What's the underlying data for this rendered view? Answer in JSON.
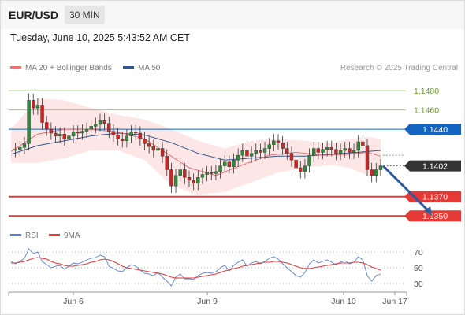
{
  "header": {
    "symbol": "EUR/USD",
    "timeframe": "30 MIN",
    "datetime": "Tuesday, June 10, 2025 5:43:52 AM CET"
  },
  "colors": {
    "ma20": "#e57373",
    "ma50": "#34578f",
    "band_fill": "#fde3e3",
    "resistance": "#9ccc65",
    "pivot": "#1565c0",
    "support": "#e53935",
    "candle_up": "#2e8b3a",
    "candle_down": "#c62828",
    "arrow": "#2c5b9e",
    "rsi": "#5b7fd6",
    "rsi_ma": "#e53935"
  },
  "chart_data": [
    {
      "type": "candlestick",
      "title": "EUR/USD",
      "legend": [
        {
          "name": "MA 20 + Bollinger Bands",
          "color": "#e57373"
        },
        {
          "name": "MA 50",
          "color": "#34578f"
        }
      ],
      "legend_placement": "top-left",
      "source": "Research © 2025 Trading Central",
      "ylim": [
        1.1342,
        1.1494
      ],
      "levels": [
        {
          "label": "1.1480",
          "value": 1.148,
          "role": "resistance"
        },
        {
          "label": "1.1460",
          "value": 1.146,
          "role": "resistance"
        },
        {
          "label": "1.1440",
          "value": 1.144,
          "role": "pivot"
        },
        {
          "label": "1.1402",
          "value": 1.1402,
          "role": "last"
        },
        {
          "label": "1.1370",
          "value": 1.137,
          "role": "support"
        },
        {
          "label": "1.1350",
          "value": 1.135,
          "role": "support"
        }
      ],
      "x_ticks": [
        "Jun 6",
        "Jun 9",
        "Jun 10",
        "Jun 17"
      ],
      "price_path": [
        [
          0,
          1.1418
        ],
        [
          1,
          1.1419
        ],
        [
          2,
          1.1421
        ],
        [
          3,
          1.1425
        ],
        [
          4,
          1.147
        ],
        [
          5,
          1.1462
        ],
        [
          6,
          1.1465
        ],
        [
          7,
          1.1447
        ],
        [
          8,
          1.144
        ],
        [
          9,
          1.1436
        ],
        [
          10,
          1.1433
        ],
        [
          11,
          1.1435
        ],
        [
          12,
          1.143
        ],
        [
          13,
          1.1433
        ],
        [
          14,
          1.1437
        ],
        [
          15,
          1.1436
        ],
        [
          16,
          1.1438
        ],
        [
          17,
          1.144
        ],
        [
          18,
          1.1443
        ],
        [
          19,
          1.1445
        ],
        [
          20,
          1.1449
        ],
        [
          21,
          1.1446
        ],
        [
          22,
          1.1438
        ],
        [
          23,
          1.1434
        ],
        [
          24,
          1.143
        ],
        [
          25,
          1.1428
        ],
        [
          26,
          1.1433
        ],
        [
          27,
          1.1437
        ],
        [
          28,
          1.1436
        ],
        [
          29,
          1.143
        ],
        [
          30,
          1.1425
        ],
        [
          31,
          1.1422
        ],
        [
          32,
          1.1418
        ],
        [
          33,
          1.142
        ],
        [
          34,
          1.1412
        ],
        [
          35,
          1.1398
        ],
        [
          36,
          1.1381
        ],
        [
          37,
          1.1392
        ],
        [
          38,
          1.1398
        ],
        [
          39,
          1.139
        ],
        [
          40,
          1.1387
        ],
        [
          41,
          1.1384
        ],
        [
          42,
          1.139
        ],
        [
          43,
          1.1393
        ],
        [
          44,
          1.1395
        ],
        [
          45,
          1.1394
        ],
        [
          46,
          1.1396
        ],
        [
          47,
          1.1402
        ],
        [
          48,
          1.1406
        ],
        [
          49,
          1.1401
        ],
        [
          50,
          1.1408
        ],
        [
          51,
          1.1413
        ],
        [
          52,
          1.1418
        ],
        [
          53,
          1.1412
        ],
        [
          54,
          1.1415
        ],
        [
          55,
          1.1418
        ],
        [
          56,
          1.1416
        ],
        [
          57,
          1.142
        ],
        [
          58,
          1.1424
        ],
        [
          59,
          1.1428
        ],
        [
          60,
          1.1426
        ],
        [
          61,
          1.142
        ],
        [
          62,
          1.1415
        ],
        [
          63,
          1.1408
        ],
        [
          64,
          1.14
        ],
        [
          65,
          1.1396
        ],
        [
          66,
          1.1402
        ],
        [
          67,
          1.1413
        ],
        [
          68,
          1.142
        ],
        [
          69,
          1.1416
        ],
        [
          70,
          1.1419
        ],
        [
          71,
          1.1421
        ],
        [
          72,
          1.1419
        ],
        [
          73,
          1.1415
        ],
        [
          74,
          1.1418
        ],
        [
          75,
          1.142
        ],
        [
          76,
          1.1416
        ],
        [
          77,
          1.1418
        ],
        [
          78,
          1.1427
        ],
        [
          79,
          1.1423
        ],
        [
          80,
          1.1398
        ],
        [
          81,
          1.1392
        ],
        [
          82,
          1.1398
        ],
        [
          83,
          1.1402
        ]
      ],
      "ma20": [
        [
          0,
          1.1417
        ],
        [
          6,
          1.1435
        ],
        [
          12,
          1.144
        ],
        [
          18,
          1.144
        ],
        [
          24,
          1.1437
        ],
        [
          30,
          1.143
        ],
        [
          36,
          1.1412
        ],
        [
          40,
          1.14
        ],
        [
          46,
          1.1392
        ],
        [
          52,
          1.1403
        ],
        [
          58,
          1.1413
        ],
        [
          64,
          1.1416
        ],
        [
          70,
          1.1413
        ],
        [
          76,
          1.1414
        ],
        [
          80,
          1.1416
        ],
        [
          83,
          1.1412
        ]
      ],
      "ma50": [
        [
          0,
          1.1414
        ],
        [
          6,
          1.1423
        ],
        [
          12,
          1.1428
        ],
        [
          18,
          1.1433
        ],
        [
          24,
          1.1436
        ],
        [
          30,
          1.1434
        ],
        [
          36,
          1.1426
        ],
        [
          42,
          1.1415
        ],
        [
          48,
          1.1408
        ],
        [
          54,
          1.141
        ],
        [
          60,
          1.1412
        ],
        [
          66,
          1.1412
        ],
        [
          72,
          1.1414
        ],
        [
          78,
          1.1416
        ],
        [
          83,
          1.1418
        ]
      ],
      "bb_upper": [
        [
          0,
          1.144
        ],
        [
          6,
          1.1472
        ],
        [
          12,
          1.147
        ],
        [
          18,
          1.1462
        ],
        [
          24,
          1.1455
        ],
        [
          30,
          1.145
        ],
        [
          36,
          1.144
        ],
        [
          42,
          1.1428
        ],
        [
          48,
          1.142
        ],
        [
          54,
          1.1428
        ],
        [
          60,
          1.143
        ],
        [
          66,
          1.1428
        ],
        [
          72,
          1.1425
        ],
        [
          76,
          1.143
        ],
        [
          80,
          1.1432
        ],
        [
          83,
          1.143
        ]
      ],
      "bb_lower": [
        [
          0,
          1.1405
        ],
        [
          6,
          1.1405
        ],
        [
          12,
          1.141
        ],
        [
          18,
          1.1418
        ],
        [
          24,
          1.1418
        ],
        [
          30,
          1.1408
        ],
        [
          36,
          1.1382
        ],
        [
          42,
          1.1372
        ],
        [
          48,
          1.1375
        ],
        [
          54,
          1.1385
        ],
        [
          60,
          1.1395
        ],
        [
          66,
          1.14
        ],
        [
          72,
          1.1403
        ],
        [
          76,
          1.14
        ],
        [
          80,
          1.1392
        ],
        [
          83,
          1.1392
        ]
      ],
      "forecast_arrow": {
        "from": [
          83,
          1.1402
        ],
        "to": [
          94,
          1.135
        ]
      }
    },
    {
      "type": "line",
      "title": "RSI",
      "legend": [
        {
          "name": "RSI",
          "color": "#5b7fd6"
        },
        {
          "name": "9MA",
          "color": "#e53935"
        }
      ],
      "ylim": [
        22,
        82
      ],
      "y_ticks": [
        {
          "label": "70",
          "value": 70
        },
        {
          "label": "50",
          "value": 50
        },
        {
          "label": "30",
          "value": 30
        }
      ],
      "rsi": [
        58,
        55,
        58,
        62,
        74,
        68,
        70,
        58,
        54,
        50,
        52,
        53,
        48,
        52,
        56,
        55,
        57,
        60,
        62,
        63,
        66,
        64,
        52,
        49,
        46,
        45,
        50,
        54,
        52,
        47,
        43,
        42,
        40,
        44,
        38,
        33,
        27,
        38,
        42,
        36,
        36,
        35,
        40,
        43,
        44,
        43,
        45,
        50,
        53,
        46,
        53,
        57,
        60,
        52,
        56,
        58,
        55,
        58,
        62,
        64,
        61,
        55,
        50,
        45,
        40,
        38,
        44,
        55,
        60,
        56,
        58,
        60,
        57,
        54,
        57,
        59,
        55,
        57,
        64,
        60,
        40,
        33,
        40,
        42
      ],
      "rsi_ma": [
        56,
        56,
        57,
        58,
        60,
        62,
        63,
        62,
        61,
        58,
        56,
        55,
        53,
        52,
        52,
        53,
        54,
        55,
        57,
        58,
        60,
        61,
        60,
        58,
        55,
        52,
        50,
        49,
        48,
        47,
        46,
        45,
        44,
        43,
        42,
        40,
        38,
        37,
        37,
        37,
        37,
        37,
        38,
        39,
        40,
        41,
        42,
        44,
        46,
        47,
        49,
        50,
        52,
        53,
        54,
        55,
        56,
        57,
        57,
        58,
        58,
        57,
        56,
        54,
        52,
        50,
        49,
        49,
        50,
        51,
        52,
        53,
        54,
        55,
        56,
        56,
        56,
        57,
        57,
        56,
        54,
        51,
        49,
        47
      ]
    }
  ]
}
